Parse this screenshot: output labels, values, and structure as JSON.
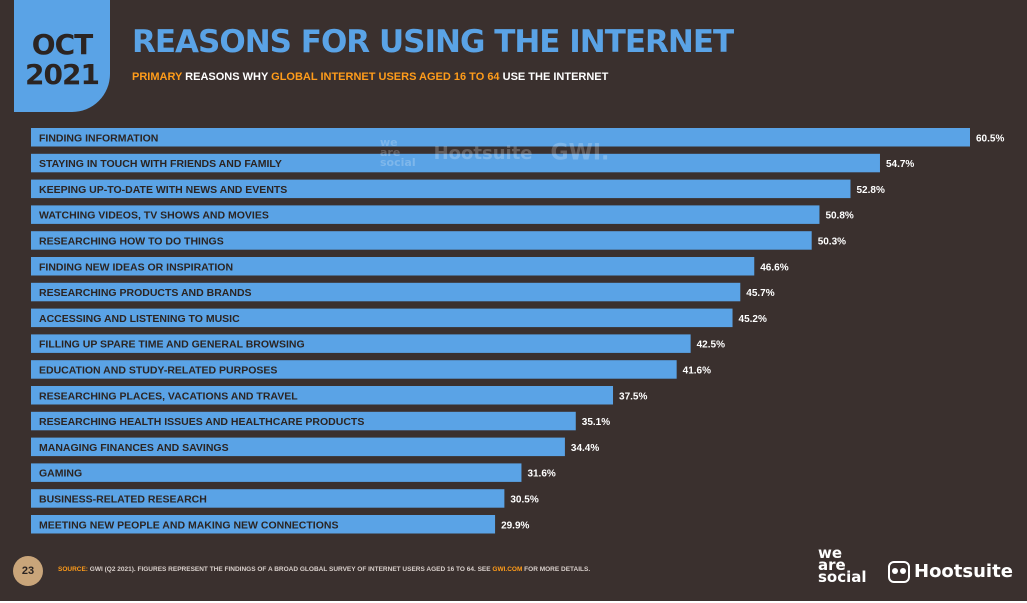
{
  "header": {
    "month": "OCT",
    "year": "2021",
    "title": "REASONS FOR USING THE INTERNET",
    "subtitle_primary": "PRIMARY",
    "subtitle_mid": " REASONS WHY ",
    "subtitle_global": "GLOBAL INTERNET USERS AGED 16 TO 64",
    "subtitle_end": " USE THE INTERNET"
  },
  "footer": {
    "page_number": "23",
    "source_label": "SOURCE:",
    "source_text": " GWI (Q2 2021). FIGURES REPRESENT THE FINDINGS OF A BROAD GLOBAL SURVEY OF INTERNET USERS AGED 16 TO 64. SEE ",
    "source_link": "GWI.COM",
    "source_end": " FOR MORE DETAILS."
  },
  "brands": {
    "wearesocial": [
      "we",
      "are",
      "social"
    ],
    "hootsuite": "Hootsuite",
    "gwi": "GWI."
  },
  "colors": {
    "background": "#3a302e",
    "accent": "#5aa3e6",
    "highlight": "#ff9c1a"
  },
  "chart_data": {
    "type": "bar",
    "orientation": "horizontal",
    "categories": [
      "FINDING INFORMATION",
      "STAYING IN TOUCH WITH FRIENDS AND FAMILY",
      "KEEPING UP-TO-DATE WITH NEWS AND EVENTS",
      "WATCHING VIDEOS, TV SHOWS AND MOVIES",
      "RESEARCHING HOW TO DO THINGS",
      "FINDING NEW IDEAS OR INSPIRATION",
      "RESEARCHING PRODUCTS AND BRANDS",
      "ACCESSING AND LISTENING TO MUSIC",
      "FILLING UP SPARE TIME AND GENERAL BROWSING",
      "EDUCATION AND STUDY-RELATED PURPOSES",
      "RESEARCHING PLACES, VACATIONS AND TRAVEL",
      "RESEARCHING HEALTH ISSUES AND HEALTHCARE PRODUCTS",
      "MANAGING FINANCES AND SAVINGS",
      "GAMING",
      "BUSINESS-RELATED RESEARCH",
      "MEETING NEW PEOPLE AND MAKING NEW CONNECTIONS"
    ],
    "values": [
      60.5,
      54.7,
      52.8,
      50.8,
      50.3,
      46.6,
      45.7,
      45.2,
      42.5,
      41.6,
      37.5,
      35.1,
      34.4,
      31.6,
      30.5,
      29.9
    ],
    "value_labels": [
      "60.5%",
      "54.7%",
      "52.8%",
      "50.8%",
      "50.3%",
      "46.6%",
      "45.7%",
      "45.2%",
      "42.5%",
      "41.6%",
      "37.5%",
      "35.1%",
      "34.4%",
      "31.6%",
      "30.5%",
      "29.9%"
    ],
    "unit": "%",
    "xlim": [
      0,
      60.5
    ],
    "grid": false,
    "bar_color": "#5aa3e6"
  }
}
